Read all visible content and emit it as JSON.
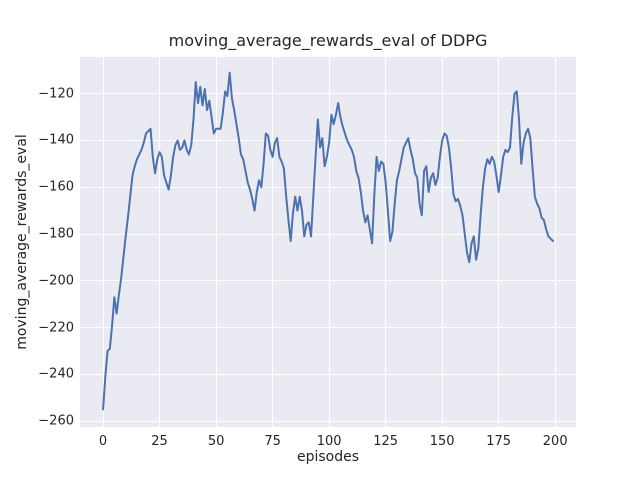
{
  "figure": {
    "title": "moving_average_rewards_eval of DDPG",
    "xlabel": "episodes",
    "ylabel": "moving_average_rewards_eval"
  },
  "colors": {
    "line": "#4c72b0",
    "plot_background": "#eaeaf2",
    "gridline": "#ffffff",
    "figure_background": "#ffffff",
    "text": "#262626"
  },
  "chart_data": {
    "type": "line",
    "title": "moving_average_rewards_eval of DDPG",
    "xlabel": "episodes",
    "ylabel": "moving_average_rewards_eval",
    "grid": true,
    "legend": null,
    "x_ticks": [
      0,
      25,
      50,
      75,
      100,
      125,
      150,
      175,
      200
    ],
    "y_ticks": [
      -120,
      -140,
      -160,
      -180,
      -200,
      -220,
      -240,
      -260
    ],
    "xlim": [
      -10.2,
      209.2
    ],
    "ylim": [
      -262.5,
      -104.3
    ],
    "series": [
      {
        "name": "moving_average_rewards_eval",
        "color": "#4c72b0",
        "x_start": 0,
        "x_step": 1,
        "values": [
          -255,
          -241,
          -230,
          -229,
          -219,
          -207,
          -214,
          -206,
          -199,
          -190,
          -181,
          -173,
          -164,
          -155,
          -151,
          -148,
          -146,
          -144,
          -141,
          -137,
          -136,
          -135,
          -147,
          -154,
          -148,
          -145,
          -147,
          -155,
          -158,
          -161,
          -155,
          -147,
          -142,
          -140,
          -144,
          -143,
          -140,
          -144,
          -146,
          -142,
          -131,
          -115,
          -124,
          -117,
          -125,
          -118,
          -127,
          -123,
          -130,
          -137,
          -135,
          -135,
          -135,
          -128,
          -119,
          -121,
          -111,
          -122,
          -127,
          -133,
          -139,
          -146,
          -148,
          -153,
          -158,
          -161,
          -165,
          -170,
          -162,
          -157,
          -160,
          -150,
          -137,
          -138,
          -144,
          -147,
          -141,
          -139,
          -147,
          -149,
          -152,
          -164,
          -174,
          -183,
          -171,
          -164,
          -170,
          -164,
          -170,
          -181,
          -176,
          -175,
          -181,
          -164,
          -147,
          -131,
          -143,
          -139,
          -151,
          -147,
          -141,
          -129,
          -133,
          -129,
          -124,
          -130,
          -134,
          -137,
          -140,
          -142,
          -144,
          -147,
          -153,
          -156,
          -162,
          -170,
          -175,
          -172,
          -178,
          -184,
          -163,
          -147,
          -153,
          -149,
          -150,
          -158,
          -170,
          -183,
          -179,
          -167,
          -157,
          -153,
          -148,
          -143,
          -141,
          -139,
          -144,
          -148,
          -154,
          -156,
          -167,
          -172,
          -153,
          -151,
          -162,
          -156,
          -154,
          -159,
          -156,
          -147,
          -140,
          -137,
          -138,
          -143,
          -152,
          -163,
          -166,
          -165,
          -168,
          -172,
          -180,
          -188,
          -192,
          -184,
          -181,
          -191,
          -186,
          -172,
          -160,
          -152,
          -148,
          -150,
          -147,
          -149,
          -155,
          -162,
          -155,
          -147,
          -144,
          -145,
          -143,
          -130,
          -120,
          -119,
          -131,
          -150,
          -141,
          -137,
          -135,
          -139,
          -152,
          -164,
          -167,
          -169,
          -173,
          -174,
          -178,
          -181,
          -182,
          -183
        ]
      }
    ]
  }
}
